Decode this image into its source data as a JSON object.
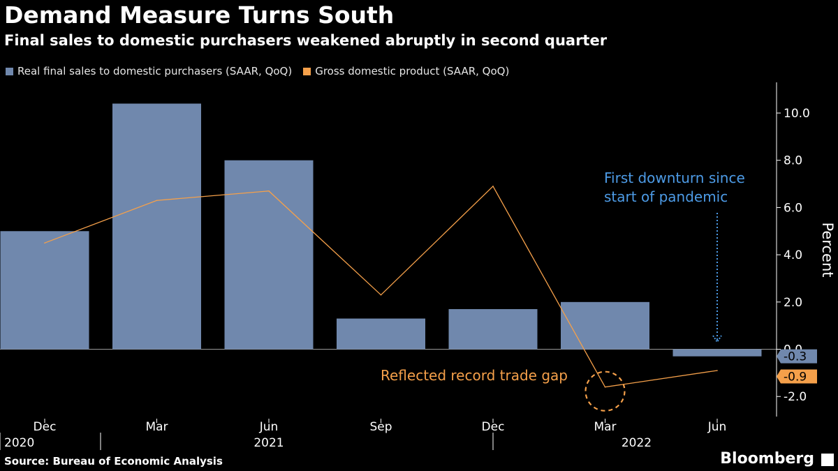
{
  "title": "Demand Measure Turns South",
  "subtitle": "Final sales to domestic purchasers weakened abruptly in second quarter",
  "source": "Source: Bureau of Economic Analysis",
  "brand": "Bloomberg",
  "colors": {
    "bar": "#7088ad",
    "line": "#f5a04a",
    "annotation_blue": "#4d9be6",
    "annotation_orange": "#f5a04a"
  },
  "chart_data": {
    "type": "bar",
    "legend_position": "top-left",
    "grid": false,
    "ylabel": "Percent",
    "ylim": [
      -2.85,
      11.3
    ],
    "yticks": [
      {
        "value": -2.0,
        "label": "-2.0"
      },
      {
        "value": 0.0,
        "label": "0.0"
      },
      {
        "value": 2.0,
        "label": "2.0"
      },
      {
        "value": 4.0,
        "label": "4.0"
      },
      {
        "value": 6.0,
        "label": "6.0"
      },
      {
        "value": 8.0,
        "label": "8.0"
      },
      {
        "value": 10.0,
        "label": "10.0"
      }
    ],
    "categories": [
      "Dec 2020",
      "Mar 2021",
      "Jun 2021",
      "Sep 2021",
      "Dec 2021",
      "Mar 2022",
      "Jun 2022"
    ],
    "xtick_labels": [
      "Dec",
      "Mar",
      "Jun",
      "Sep",
      "Dec",
      "Mar",
      "Jun"
    ],
    "year_labels": [
      {
        "label": "2020",
        "category_index": 0,
        "align": "start"
      },
      {
        "label": "2021",
        "category_index": 2,
        "align": "center"
      },
      {
        "label": "2022",
        "category_index": 5,
        "align": "center-right"
      }
    ],
    "series": [
      {
        "name": "Real final sales to domestic purchasers (SAAR, QoQ)",
        "kind": "bar",
        "values": [
          5.0,
          10.4,
          8.0,
          1.3,
          1.7,
          2.0,
          -0.3
        ],
        "end_label": "-0.3"
      },
      {
        "name": "Gross domestic product (SAAR, QoQ)",
        "kind": "line",
        "values": [
          4.5,
          6.3,
          6.7,
          2.3,
          6.9,
          -1.6,
          -0.9
        ],
        "end_label": "-0.9"
      }
    ],
    "annotations": [
      {
        "text": "First downturn since start of pandemic",
        "lines": [
          "First downturn since",
          "start of pandemic"
        ],
        "color": "blue",
        "target_index": 6,
        "arrow": "dotted-down"
      },
      {
        "text": "Reflected record trade gap",
        "color": "orange",
        "target_index": 5,
        "marker": "dashed-circle"
      }
    ]
  }
}
